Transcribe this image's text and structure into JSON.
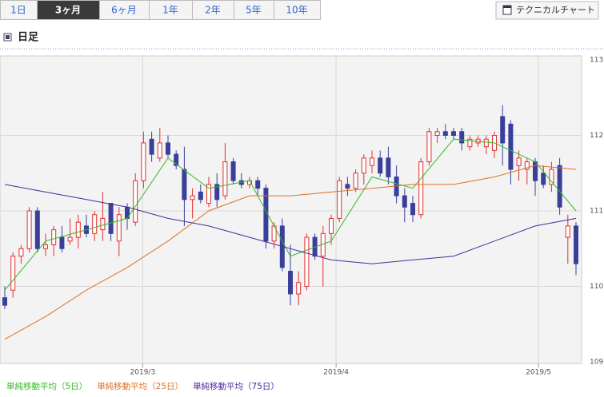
{
  "tabs": [
    "1日",
    "3ヶ月",
    "6ヶ月",
    "1年",
    "2年",
    "5年",
    "10年"
  ],
  "selected_tab": 1,
  "technical_button": "テクニカルチャート",
  "section_title": "日足",
  "chart_data": {
    "type": "candlestick",
    "up_color": "#e03030",
    "down_color": "#3a3f9a",
    "ylim": [
      109,
      113
    ],
    "yticks": [
      109,
      110,
      111,
      112,
      113
    ],
    "xlim": [
      -0.6,
      70.6
    ],
    "xticks": [
      {
        "value": 16.9,
        "label": "2019/3"
      },
      {
        "value": 40.6,
        "label": "2019/4"
      },
      {
        "value": 65.4,
        "label": "2019/5"
      }
    ],
    "grid": true,
    "ohlc": [
      [
        109.85,
        110.0,
        109.7,
        109.75
      ],
      [
        109.95,
        110.45,
        109.85,
        110.4
      ],
      [
        110.4,
        110.55,
        110.3,
        110.5
      ],
      [
        110.5,
        111.05,
        110.45,
        111.0
      ],
      [
        111.0,
        111.05,
        110.45,
        110.5
      ],
      [
        110.5,
        110.7,
        110.4,
        110.55
      ],
      [
        110.55,
        110.8,
        110.4,
        110.75
      ],
      [
        110.65,
        110.8,
        110.45,
        110.5
      ],
      [
        110.6,
        110.9,
        110.55,
        110.65
      ],
      [
        110.65,
        110.95,
        110.5,
        110.85
      ],
      [
        110.8,
        110.95,
        110.65,
        110.7
      ],
      [
        110.7,
        111.0,
        110.6,
        110.95
      ],
      [
        110.75,
        111.25,
        110.6,
        110.9
      ],
      [
        111.1,
        111.1,
        110.6,
        110.7
      ],
      [
        110.6,
        111.05,
        110.4,
        110.95
      ],
      [
        111.05,
        111.1,
        110.75,
        110.9
      ],
      [
        110.85,
        111.5,
        110.8,
        111.4
      ],
      [
        111.4,
        112.05,
        111.3,
        111.9
      ],
      [
        111.95,
        112.05,
        111.65,
        111.75
      ],
      [
        111.7,
        112.1,
        111.65,
        111.9
      ],
      [
        111.9,
        112.0,
        111.7,
        111.75
      ],
      [
        111.75,
        111.8,
        111.55,
        111.6
      ],
      [
        111.55,
        111.85,
        110.8,
        111.15
      ],
      [
        111.15,
        111.3,
        110.9,
        111.2
      ],
      [
        111.25,
        111.35,
        111.1,
        111.15
      ],
      [
        111.1,
        111.45,
        111.05,
        111.35
      ],
      [
        111.35,
        111.5,
        111.05,
        111.15
      ],
      [
        111.2,
        111.9,
        111.15,
        111.65
      ],
      [
        111.65,
        111.7,
        111.35,
        111.4
      ],
      [
        111.4,
        111.5,
        111.3,
        111.35
      ],
      [
        111.35,
        111.45,
        111.3,
        111.4
      ],
      [
        111.4,
        111.45,
        111.2,
        111.3
      ],
      [
        111.3,
        111.35,
        110.5,
        110.6
      ],
      [
        110.6,
        110.85,
        110.5,
        110.8
      ],
      [
        110.8,
        110.9,
        110.2,
        110.25
      ],
      [
        110.2,
        110.55,
        109.75,
        109.9
      ],
      [
        109.9,
        110.2,
        109.75,
        110.05
      ],
      [
        110.0,
        110.7,
        109.95,
        110.65
      ],
      [
        110.65,
        110.7,
        110.35,
        110.4
      ],
      [
        110.4,
        110.8,
        110.0,
        110.7
      ],
      [
        110.7,
        110.95,
        110.55,
        110.9
      ],
      [
        110.9,
        111.45,
        110.85,
        111.4
      ],
      [
        111.35,
        111.45,
        111.2,
        111.3
      ],
      [
        111.3,
        111.55,
        111.25,
        111.5
      ],
      [
        111.5,
        111.75,
        111.35,
        111.7
      ],
      [
        111.6,
        111.8,
        111.5,
        111.7
      ],
      [
        111.7,
        111.8,
        111.45,
        111.5
      ],
      [
        111.7,
        111.85,
        111.35,
        111.45
      ],
      [
        111.45,
        111.6,
        111.1,
        111.2
      ],
      [
        111.2,
        111.3,
        110.85,
        111.05
      ],
      [
        111.1,
        111.2,
        110.85,
        110.95
      ],
      [
        110.95,
        111.7,
        110.9,
        111.65
      ],
      [
        111.65,
        112.1,
        111.6,
        112.05
      ],
      [
        112.0,
        112.1,
        111.9,
        112.05
      ],
      [
        112.05,
        112.15,
        111.95,
        112.0
      ],
      [
        112.05,
        112.1,
        111.95,
        112.0
      ],
      [
        112.05,
        112.1,
        111.8,
        111.9
      ],
      [
        111.85,
        112.0,
        111.8,
        111.95
      ],
      [
        111.9,
        112.0,
        111.85,
        111.95
      ],
      [
        111.85,
        112.0,
        111.75,
        111.95
      ],
      [
        111.8,
        112.05,
        111.7,
        112.0
      ],
      [
        112.25,
        112.4,
        111.6,
        111.9
      ],
      [
        112.15,
        112.2,
        111.35,
        111.55
      ],
      [
        111.6,
        111.8,
        111.4,
        111.7
      ],
      [
        111.55,
        111.7,
        111.35,
        111.65
      ],
      [
        111.65,
        111.7,
        111.2,
        111.4
      ],
      [
        111.5,
        111.6,
        111.3,
        111.35
      ],
      [
        111.35,
        111.65,
        111.25,
        111.55
      ],
      [
        111.6,
        111.7,
        110.95,
        111.05
      ],
      [
        110.65,
        110.95,
        110.3,
        110.8
      ],
      [
        110.8,
        110.85,
        110.15,
        110.3
      ]
    ],
    "series": [
      {
        "name": "単純移動平均（5日）",
        "color": "#33bb22",
        "x": [
          0,
          5,
          10,
          15,
          20,
          25,
          30,
          35,
          40,
          45,
          50,
          55,
          60,
          65,
          70
        ],
        "values": [
          109.95,
          110.6,
          110.75,
          110.9,
          111.7,
          111.3,
          111.4,
          110.4,
          110.6,
          111.45,
          111.3,
          111.95,
          111.9,
          111.65,
          111.0
        ]
      },
      {
        "name": "単純移動平均（25日）",
        "color": "#e07020",
        "x": [
          0,
          5,
          10,
          15,
          20,
          25,
          30,
          35,
          40,
          45,
          50,
          55,
          60,
          65,
          70
        ],
        "values": [
          109.3,
          109.6,
          109.95,
          110.25,
          110.6,
          111.0,
          111.2,
          111.2,
          111.25,
          111.3,
          111.35,
          111.35,
          111.45,
          111.6,
          111.55
        ]
      },
      {
        "name": "単純移動平均（75日）",
        "color": "#4a2a99",
        "x": [
          0,
          5,
          10,
          15,
          20,
          25,
          30,
          35,
          40,
          45,
          50,
          55,
          60,
          65,
          70
        ],
        "values": [
          111.35,
          111.25,
          111.15,
          111.05,
          110.9,
          110.8,
          110.65,
          110.5,
          110.35,
          110.3,
          110.35,
          110.4,
          110.6,
          110.8,
          110.9
        ]
      }
    ]
  }
}
